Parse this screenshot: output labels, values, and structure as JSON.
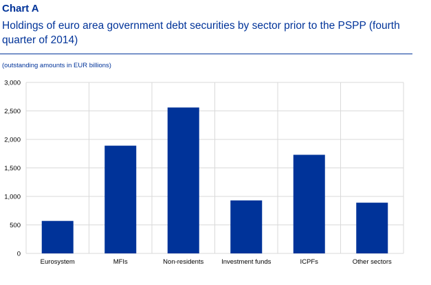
{
  "header": {
    "label": "Chart A",
    "title": "Holdings of euro area government debt securities by sector prior to the PSPP (fourth quarter of 2014)",
    "subtitle": "(outstanding amounts in EUR billions)"
  },
  "colors": {
    "bar": "#003399",
    "grid": "#d9d9d9",
    "title": "#003399"
  },
  "chart_data": {
    "type": "bar",
    "title": "Holdings of euro area government debt securities by sector prior to the PSPP (fourth quarter of 2014)",
    "ylabel": "(outstanding amounts in EUR billions)",
    "categories": [
      "Eurosystem",
      "MFIs",
      "Non-residents",
      "Investment funds",
      "ICPFs",
      "Other sectors"
    ],
    "values": [
      570,
      1890,
      2560,
      930,
      1730,
      890
    ],
    "ylim": [
      0,
      3000
    ],
    "yticks": [
      0,
      500,
      1000,
      1500,
      2000,
      2500,
      3000
    ],
    "ytick_labels": [
      "0",
      "500",
      "1,000",
      "1,500",
      "2,000",
      "2,500",
      "3,000"
    ],
    "grid": true,
    "legend": "none"
  }
}
